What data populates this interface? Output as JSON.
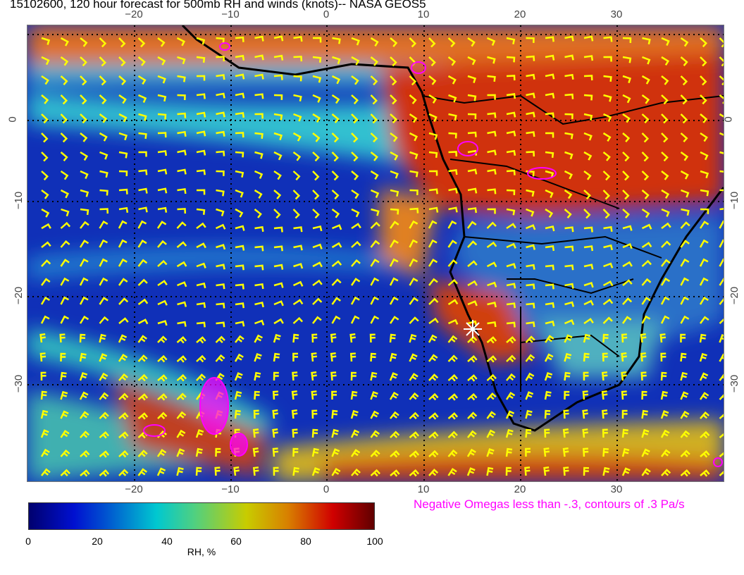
{
  "title": "15102600, 120 hour forecast for 500mb RH and winds (knots)-- NASA GEOS5",
  "x_ticks": [
    "−20",
    "−10",
    "0",
    "10",
    "20",
    "30"
  ],
  "y_ticks": [
    "0",
    "−10",
    "−20",
    "−30"
  ],
  "colorbar": {
    "label": "RH, %",
    "ticks": [
      "0",
      "20",
      "40",
      "60",
      "80",
      "100"
    ],
    "colors": [
      "#00006e",
      "#0010d0",
      "#00c8d0",
      "#c8cc00",
      "#d00000",
      "#600000"
    ]
  },
  "annotation": "Negative Omegas less than -.3, contours of .3 Pa/s",
  "colors": {
    "wind_barbs": "#ffff00",
    "omega_contours": "#ff00ff",
    "coastlines": "#000000",
    "marker": "#ffffff"
  },
  "marker_icon": "asterisk-icon"
}
